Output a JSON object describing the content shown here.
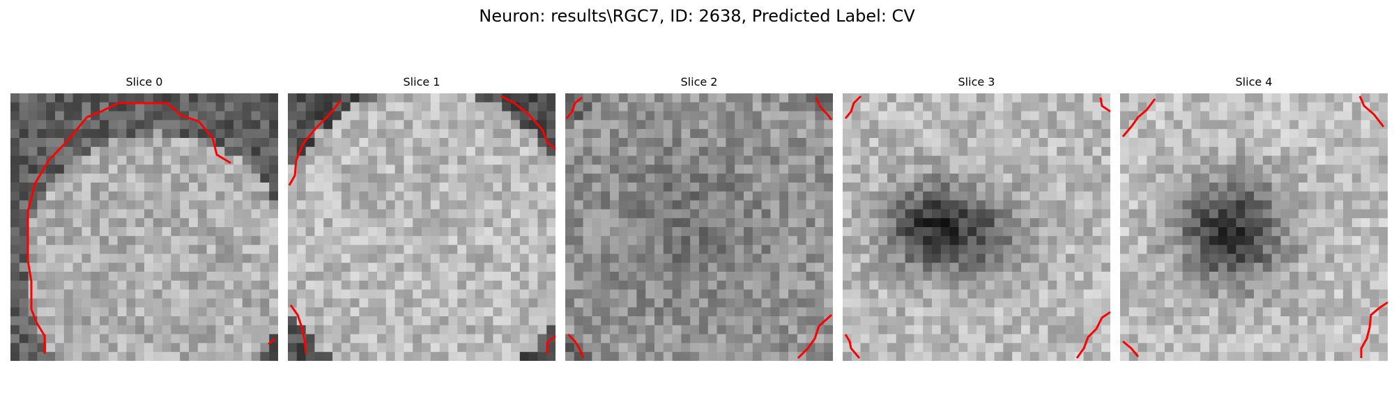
{
  "figure_title": "Neuron: results\\RGC7, ID: 2638, Predicted Label: CV",
  "contour_color": "#ff0000",
  "panels": [
    {
      "title": "Slice 0",
      "pattern": "dark-top-bright-interior",
      "contour": "large arc around top-left, top edge and bright interior"
    },
    {
      "title": "Slice 1",
      "pattern": "bright-disc-dark-corners",
      "contour": "short segments in the four corners"
    },
    {
      "title": "Slice 2",
      "pattern": "noisy-gray-darker-center",
      "contour": "short segments in the four corners"
    },
    {
      "title": "Slice 3",
      "pattern": "dark-double-blob-left-center",
      "contour": "short segments in the four corners"
    },
    {
      "title": "Slice 4",
      "pattern": "dark-blob-center",
      "contour": "short segments in the four corners"
    }
  ]
}
